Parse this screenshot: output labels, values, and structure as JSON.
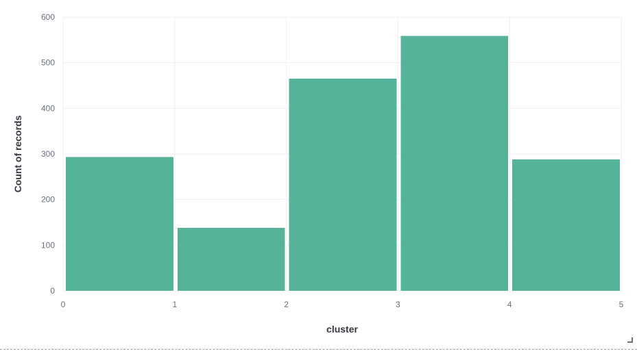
{
  "chart_data": {
    "type": "bar",
    "title": "",
    "xlabel": "cluster",
    "ylabel": "Count of records",
    "bins": [
      [
        0,
        1
      ],
      [
        1,
        2
      ],
      [
        2,
        3
      ],
      [
        3,
        4
      ],
      [
        4,
        5
      ]
    ],
    "values": [
      293,
      138,
      465,
      559,
      288
    ],
    "xlim": [
      0,
      5
    ],
    "ylim": [
      0,
      600
    ],
    "x_ticks": [
      "0",
      "1",
      "2",
      "3",
      "4",
      "5"
    ],
    "y_ticks": [
      "0",
      "100",
      "200",
      "300",
      "400",
      "500",
      "600"
    ],
    "grid": true,
    "legend": "none"
  },
  "colors": {
    "bar": "#54b399",
    "grid": "#eef0f3",
    "tick_text": "#69707d",
    "axis_title": "#343741"
  },
  "icons": {
    "resize_handle": "resize-corner-icon"
  }
}
